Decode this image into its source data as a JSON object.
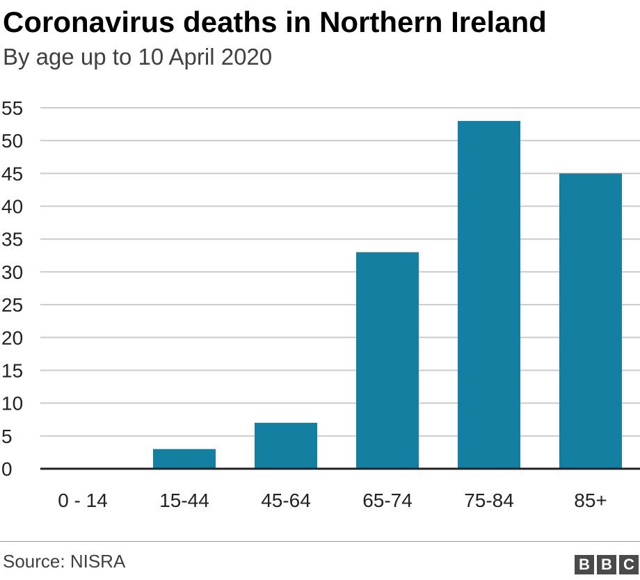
{
  "chart_data": {
    "type": "bar",
    "title": "Coronavirus deaths in Northern Ireland",
    "subtitle": "By age up to 10 April 2020",
    "categories": [
      "0 - 14",
      "15-44",
      "45-64",
      "65-74",
      "75-84",
      "85+"
    ],
    "values": [
      0,
      3,
      7,
      33,
      53,
      45
    ],
    "xlabel": "",
    "ylabel": "",
    "ylim": [
      0,
      55
    ],
    "yticks": [
      0,
      5,
      10,
      15,
      20,
      25,
      30,
      35,
      40,
      45,
      50,
      55
    ],
    "grid": true,
    "legend": "none",
    "bar_color": "#1380A1",
    "grid_color": "#CBCBCB",
    "axis_color": "#222222"
  },
  "footer": {
    "source": "Source: NISRA",
    "logo_letters": [
      "B",
      "B",
      "C"
    ]
  }
}
